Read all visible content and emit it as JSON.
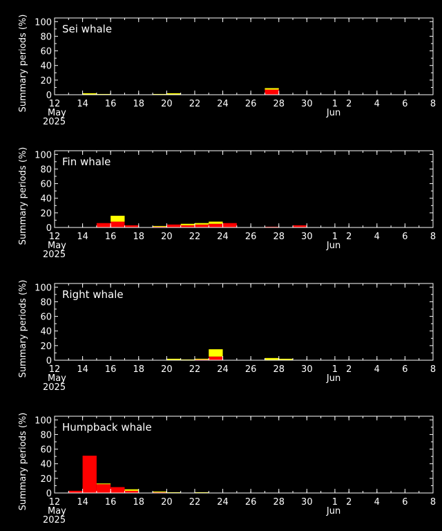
{
  "colors": {
    "background": "#000000",
    "axes": "#ffffff",
    "detected": "#ff0000",
    "possible": "#ffff00"
  },
  "chart_data": [
    {
      "type": "bar",
      "stacked": true,
      "title": "Sei whale",
      "ylabel": "Summary periods (%)",
      "ylim": [
        0,
        105
      ],
      "yticks": [
        0,
        20,
        40,
        60,
        80,
        100
      ],
      "xlim": [
        "2025-05-12",
        "2025-06-08"
      ],
      "x_tick_labels": [
        "12",
        "14",
        "16",
        "18",
        "20",
        "22",
        "24",
        "26",
        "28",
        "30",
        "1",
        "2",
        "4",
        "6",
        "8"
      ],
      "x_secondary_labels": [
        "May",
        "2025",
        "Jun"
      ],
      "series": [
        {
          "color": "#ff0000",
          "x": [
            "2025-05-27"
          ],
          "values": [
            7
          ]
        },
        {
          "color": "#ffff00",
          "x": [
            "2025-05-14",
            "2025-05-15",
            "2025-05-19",
            "2025-05-20",
            "2025-05-27"
          ],
          "values": [
            2,
            1,
            1,
            2,
            2
          ]
        }
      ]
    },
    {
      "type": "bar",
      "stacked": true,
      "title": "Fin whale",
      "ylabel": "Summary periods (%)",
      "ylim": [
        0,
        105
      ],
      "yticks": [
        0,
        20,
        40,
        60,
        80,
        100
      ],
      "xlim": [
        "2025-05-12",
        "2025-06-08"
      ],
      "x_tick_labels": [
        "12",
        "14",
        "16",
        "18",
        "20",
        "22",
        "24",
        "26",
        "28",
        "30",
        "1",
        "2",
        "4",
        "6",
        "8"
      ],
      "x_secondary_labels": [
        "May",
        "2025",
        "Jun"
      ],
      "series": [
        {
          "color": "#ff0000",
          "x": [
            "2025-05-15",
            "2025-05-16",
            "2025-05-17",
            "2025-05-19",
            "2025-05-20",
            "2025-05-21",
            "2025-05-22",
            "2025-05-23",
            "2025-05-24",
            "2025-05-27",
            "2025-05-29"
          ],
          "values": [
            6,
            8,
            3,
            1,
            4,
            3,
            4,
            5,
            6,
            1,
            3
          ]
        },
        {
          "color": "#ffff00",
          "x": [
            "2025-05-16",
            "2025-05-19",
            "2025-05-21",
            "2025-05-22",
            "2025-05-23"
          ],
          "values": [
            8,
            1,
            2,
            2,
            3
          ]
        }
      ]
    },
    {
      "type": "bar",
      "stacked": true,
      "title": "Right whale",
      "ylabel": "Summary periods (%)",
      "ylim": [
        0,
        105
      ],
      "yticks": [
        0,
        20,
        40,
        60,
        80,
        100
      ],
      "xlim": [
        "2025-05-12",
        "2025-06-08"
      ],
      "x_tick_labels": [
        "12",
        "14",
        "16",
        "18",
        "20",
        "22",
        "24",
        "26",
        "28",
        "30",
        "1",
        "2",
        "4",
        "6",
        "8"
      ],
      "x_secondary_labels": [
        "May",
        "2025",
        "Jun"
      ],
      "series": [
        {
          "color": "#ff0000",
          "x": [
            "2025-05-22",
            "2025-05-23"
          ],
          "values": [
            1,
            5
          ]
        },
        {
          "color": "#ffff00",
          "x": [
            "2025-05-20",
            "2025-05-21",
            "2025-05-22",
            "2025-05-23",
            "2025-05-27",
            "2025-05-28"
          ],
          "values": [
            2,
            1,
            1,
            10,
            3,
            2
          ]
        }
      ]
    },
    {
      "type": "bar",
      "stacked": true,
      "title": "Humpback whale",
      "ylabel": "Summary periods (%)",
      "ylim": [
        0,
        105
      ],
      "yticks": [
        0,
        20,
        40,
        60,
        80,
        100
      ],
      "xlim": [
        "2025-05-12",
        "2025-06-08"
      ],
      "x_tick_labels": [
        "12",
        "14",
        "16",
        "18",
        "20",
        "22",
        "24",
        "26",
        "28",
        "30",
        "1",
        "2",
        "4",
        "6",
        "8"
      ],
      "x_secondary_labels": [
        "May",
        "2025",
        "Jun"
      ],
      "series": [
        {
          "color": "#ff0000",
          "x": [
            "2025-05-13",
            "2025-05-14",
            "2025-05-15",
            "2025-05-16",
            "2025-05-17",
            "2025-05-19"
          ],
          "values": [
            3,
            51,
            12,
            8,
            3,
            1
          ]
        },
        {
          "color": "#ffff00",
          "x": [
            "2025-05-15",
            "2025-05-17",
            "2025-05-19",
            "2025-05-20",
            "2025-05-22"
          ],
          "values": [
            1,
            2,
            1,
            1,
            1
          ]
        }
      ]
    }
  ]
}
